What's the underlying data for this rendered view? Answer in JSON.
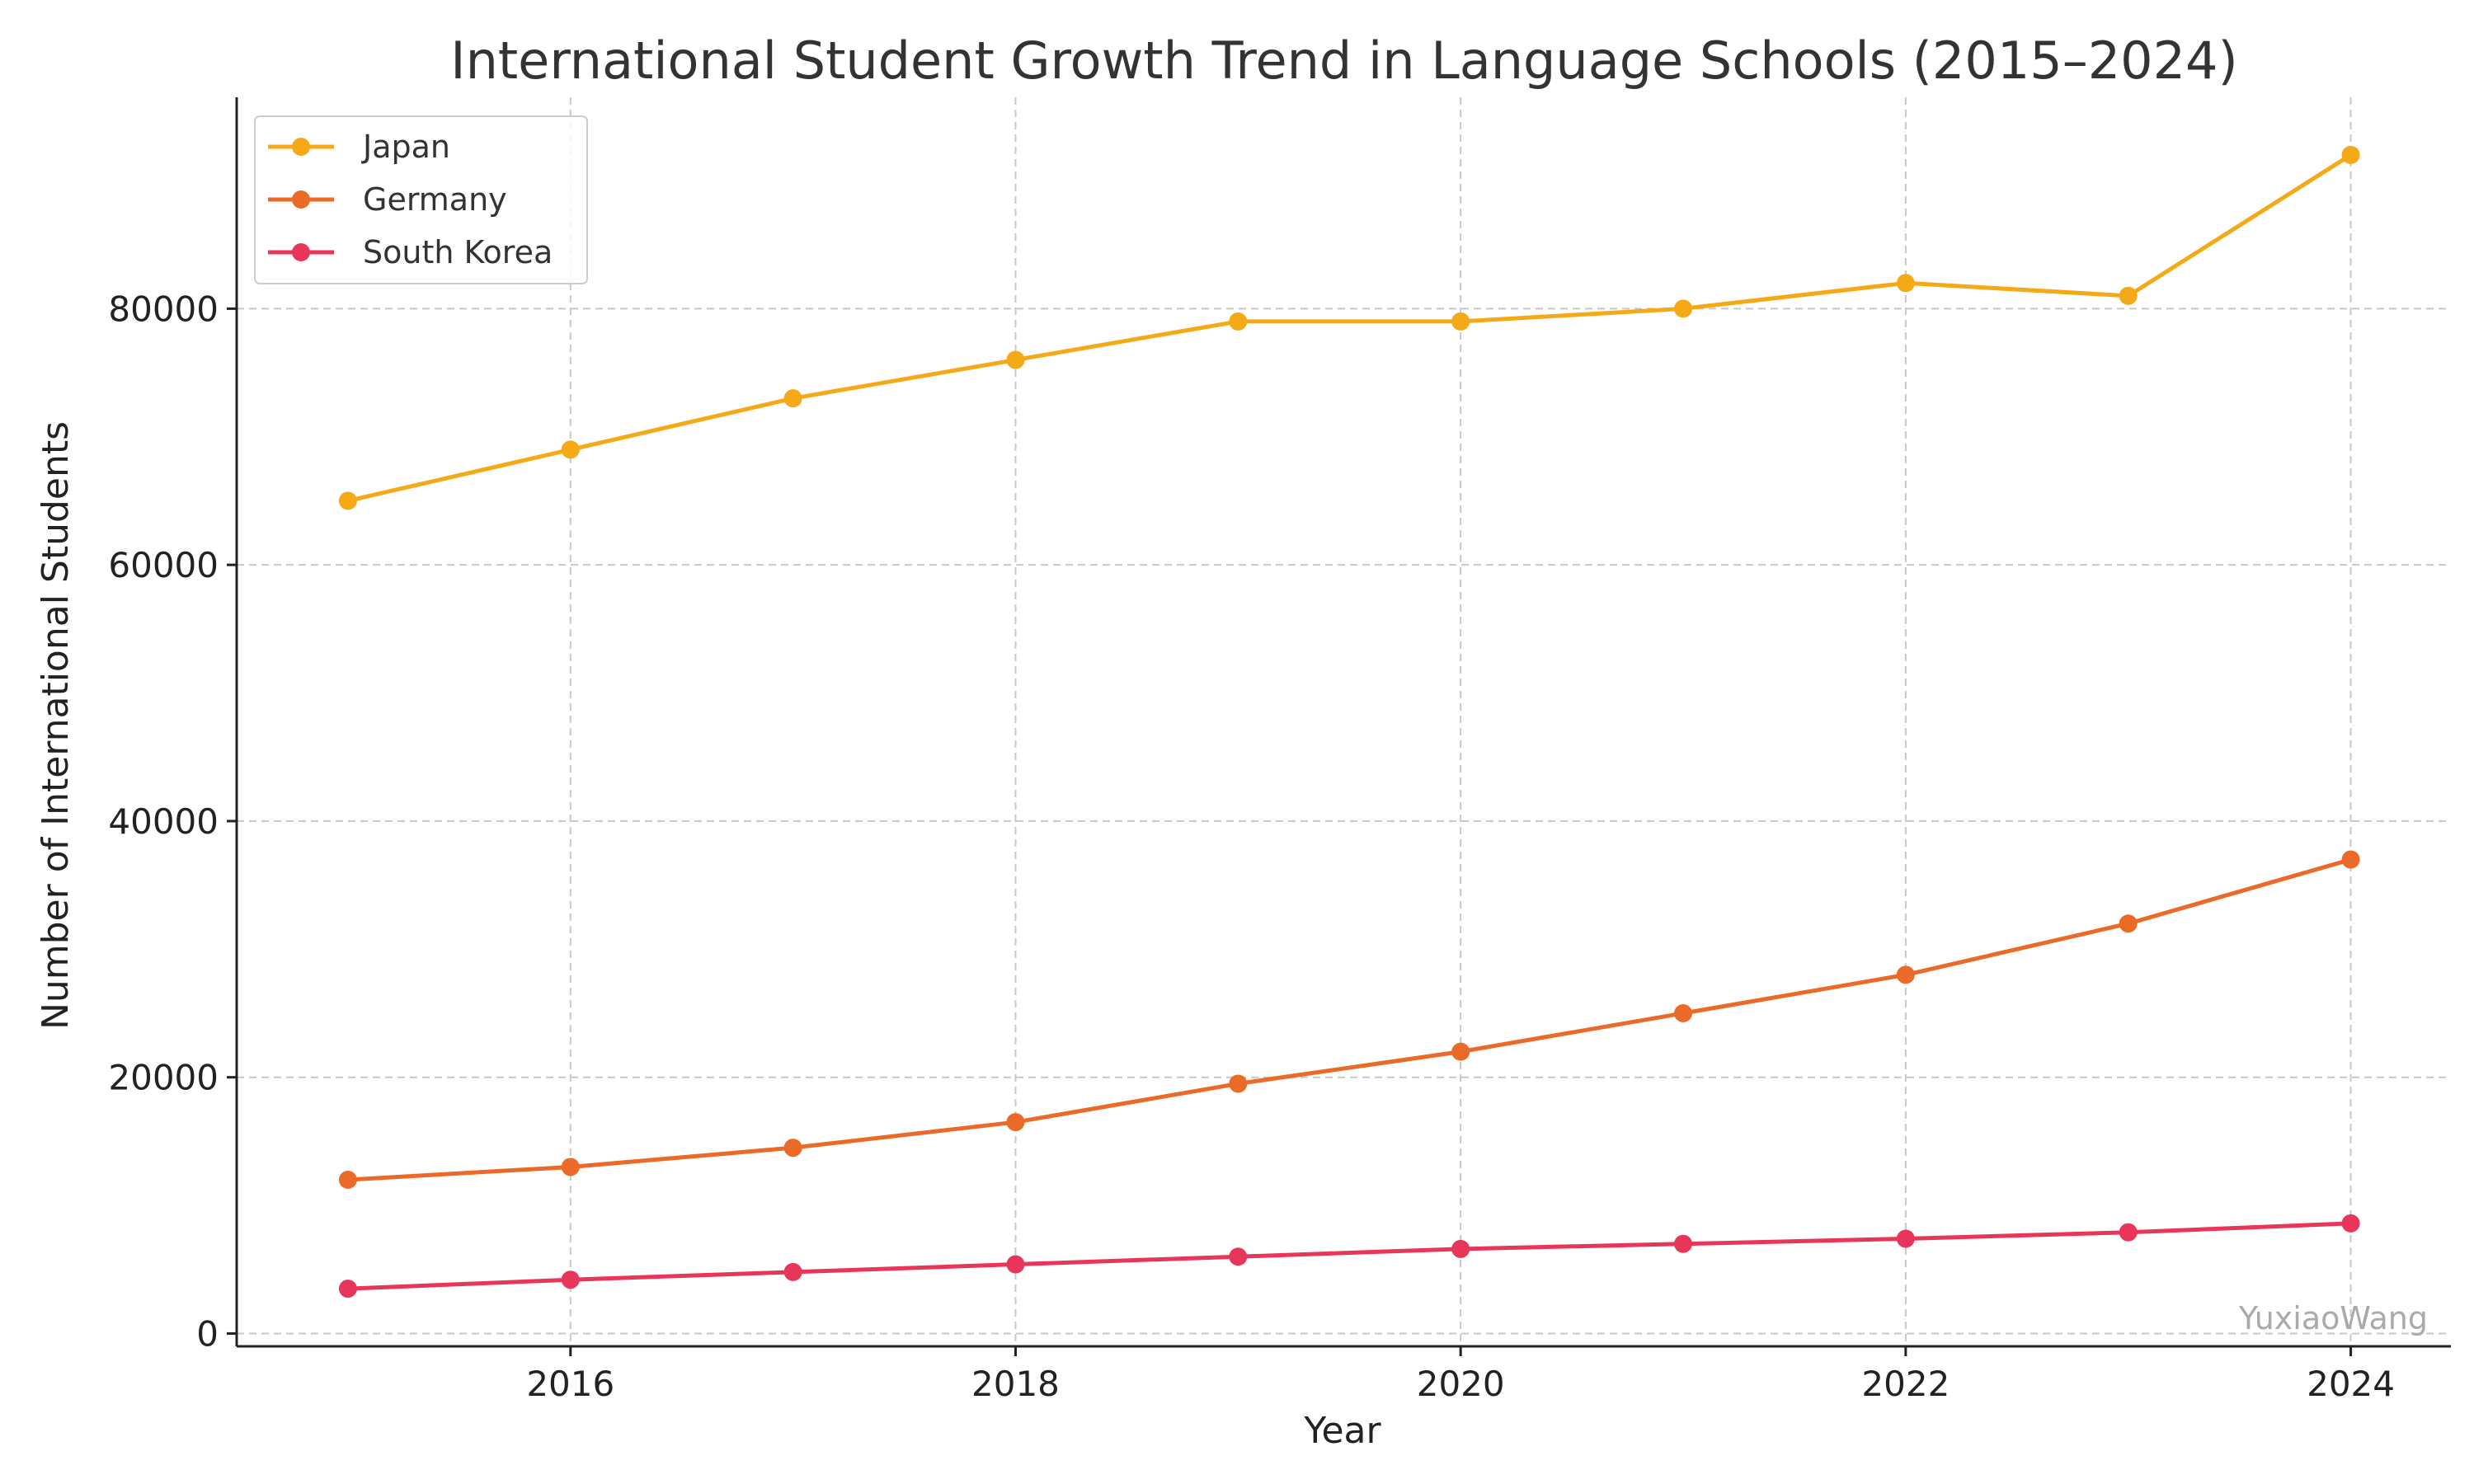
{
  "chart_data": {
    "type": "line",
    "title": "International Student Growth Trend in Language Schools (2015–2024)",
    "xlabel": "Year",
    "ylabel": "Number of International Students",
    "x": [
      2015,
      2016,
      2017,
      2018,
      2019,
      2020,
      2021,
      2022,
      2023,
      2024
    ],
    "xlim": [
      2014.5,
      2024.45
    ],
    "ylim": [
      -1000,
      96500
    ],
    "xticks": [
      2016,
      2018,
      2020,
      2022,
      2024
    ],
    "yticks": [
      0,
      20000,
      40000,
      60000,
      80000
    ],
    "grid": true,
    "legend_position": "top-left",
    "series": [
      {
        "name": "Japan",
        "color": "#F5A917",
        "values": [
          65000,
          69000,
          73000,
          76000,
          79000,
          79000,
          80000,
          82000,
          81000,
          92000
        ]
      },
      {
        "name": "Germany",
        "color": "#EC6A27",
        "values": [
          12000,
          13000,
          14500,
          16500,
          19500,
          22000,
          25000,
          28000,
          32000,
          37000
        ]
      },
      {
        "name": "South Korea",
        "color": "#E8365A",
        "values": [
          3500,
          4200,
          4800,
          5400,
          6000,
          6600,
          7000,
          7400,
          7900,
          8600
        ]
      }
    ],
    "watermark": "YuxiaoWang"
  }
}
